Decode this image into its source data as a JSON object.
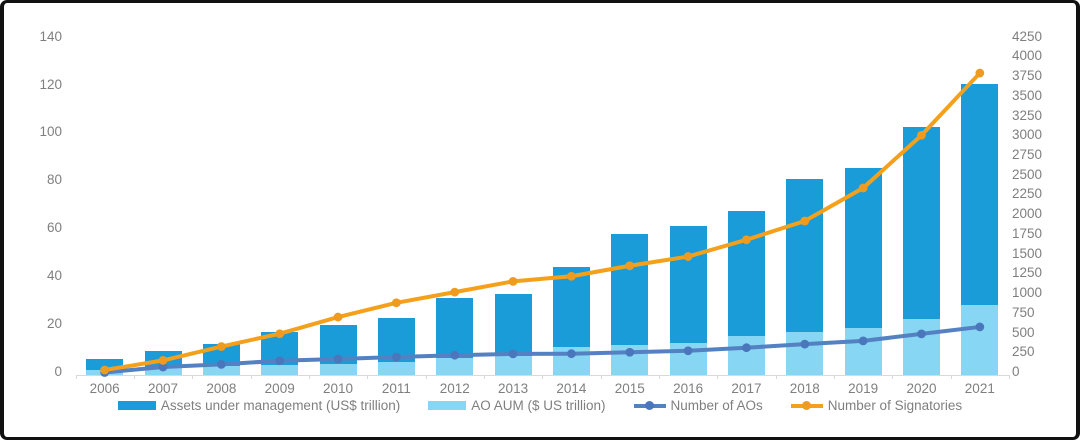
{
  "chart_data": {
    "type": "bar",
    "subtype": "combo-bar-line",
    "title": "",
    "grid": false,
    "legend_position": "bottom",
    "categories": [
      "2006",
      "2007",
      "2008",
      "2009",
      "2010",
      "2011",
      "2012",
      "2013",
      "2014",
      "2015",
      "2016",
      "2017",
      "2018",
      "2019",
      "2020",
      "2021"
    ],
    "series": [
      {
        "name": "Assets under management (US$ trillion)",
        "type": "bar",
        "axis": "left",
        "color": "#1a9cd8",
        "values": [
          6.5,
          10,
          13,
          18,
          21,
          24,
          32,
          34,
          45,
          59,
          62,
          68.4,
          81.7,
          86.3,
          103.4,
          121.3
        ]
      },
      {
        "name": "AO AUM ($ US trillion)",
        "type": "bar",
        "axis": "left",
        "color": "#87d6f4",
        "values": [
          2,
          3,
          3.8,
          4.1,
          4.7,
          5.4,
          7,
          7.8,
          11.5,
          12.5,
          13.4,
          16.3,
          17.8,
          19.8,
          23.5,
          29.2
        ]
      },
      {
        "name": "Number of AOs",
        "type": "line",
        "axis": "right",
        "color": "#5381c1",
        "marker_color": "#4a77bc",
        "values": [
          32,
          101,
          135,
          181,
          203,
          228,
          251,
          268,
          270,
          288,
          307,
          346,
          391,
          432,
          521,
          609
        ]
      },
      {
        "name": "Number of Signatories",
        "type": "line",
        "axis": "right",
        "color": "#f5a01b",
        "marker_color": "#ef9b1f",
        "values": [
          63,
          185,
          361,
          523,
          734,
          915,
          1050,
          1186,
          1251,
          1384,
          1501,
          1714,
          1951,
          2370,
          3038,
          3826
        ]
      }
    ],
    "left_axis": {
      "min": 0,
      "max": 140,
      "step": 20,
      "ticks": [
        0,
        20,
        40,
        60,
        80,
        100,
        120,
        140
      ]
    },
    "right_axis": {
      "min": 0,
      "max": 4250,
      "step": 250,
      "ticks": [
        0,
        250,
        500,
        750,
        1000,
        1250,
        1500,
        1750,
        2000,
        2250,
        2500,
        2750,
        3000,
        3250,
        3500,
        3750,
        4000,
        4250
      ]
    }
  },
  "colors": {
    "axis_line": "#d9d9d9",
    "label_gray": "#7f7f7f",
    "frame_border": "#111111",
    "background": "#ffffff"
  }
}
